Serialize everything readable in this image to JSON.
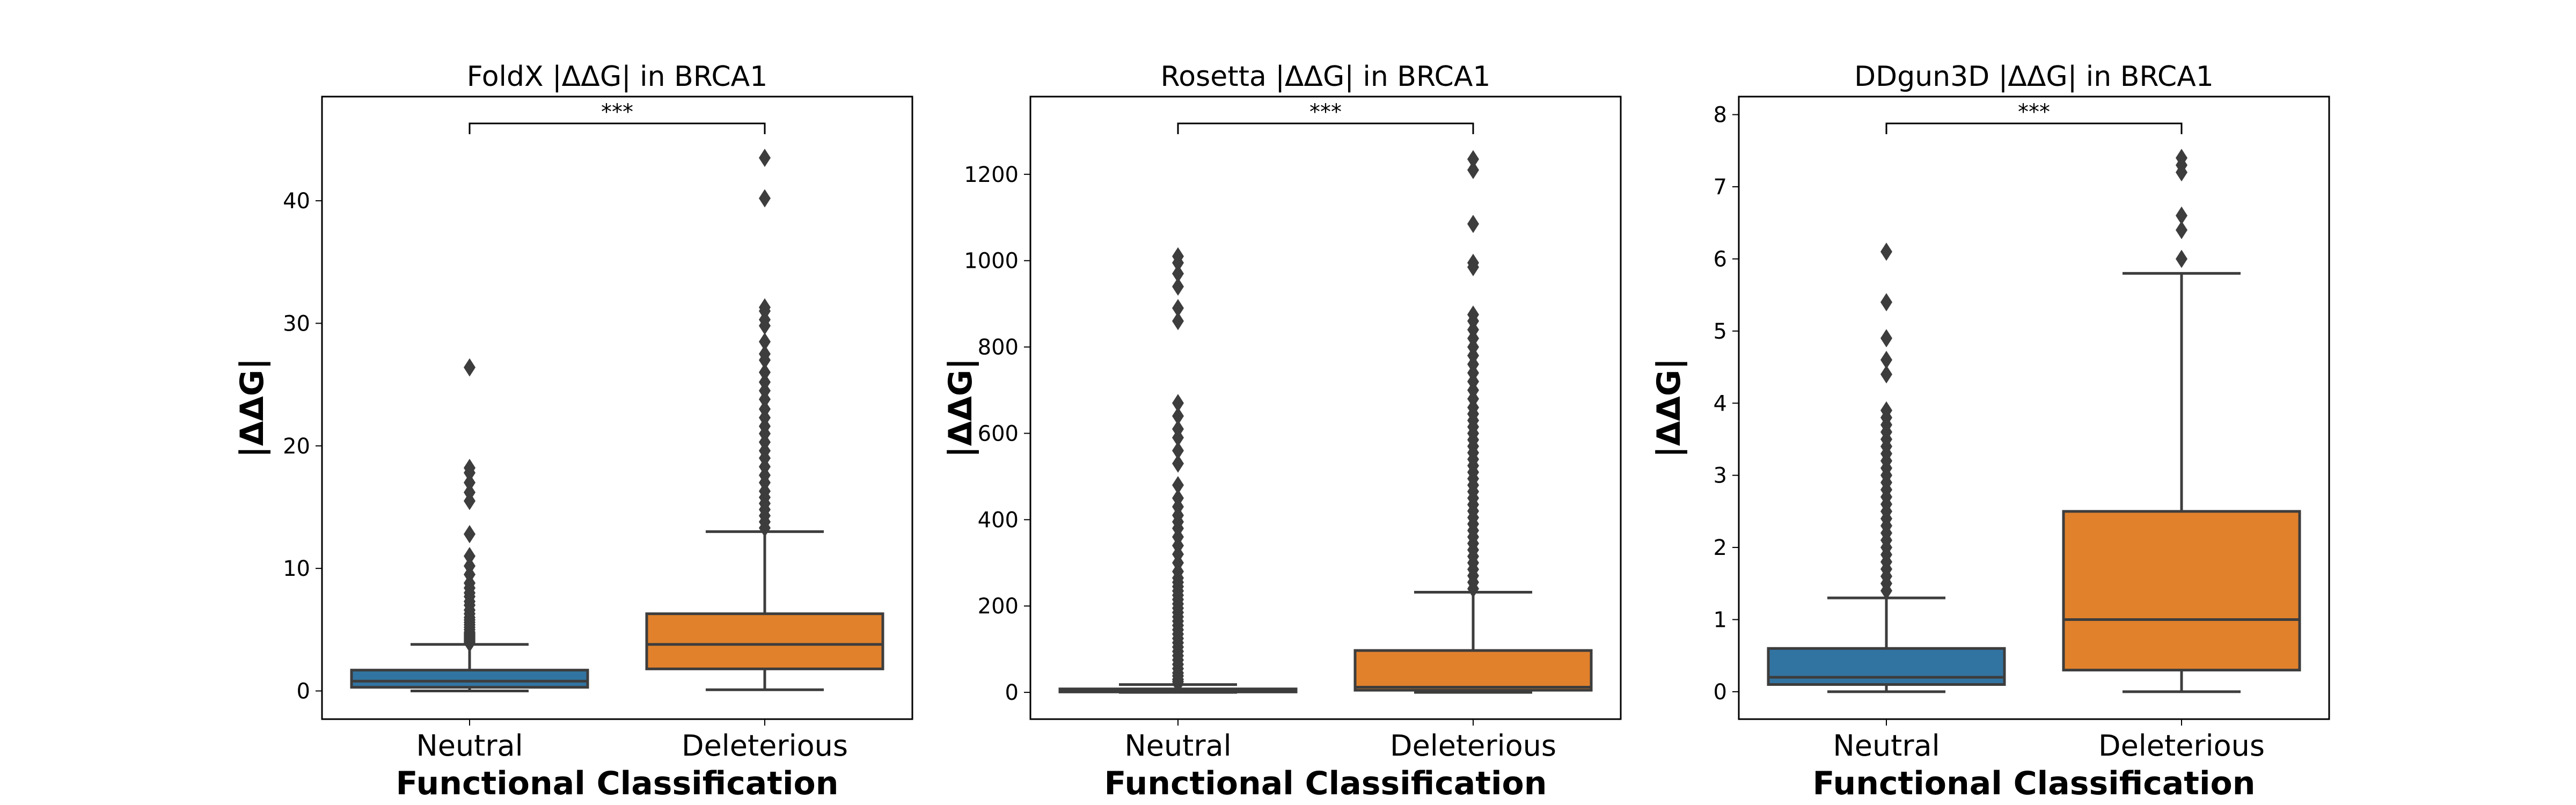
{
  "chart_data": [
    {
      "type": "box",
      "title": "FoldX |ΔΔG| in BRCA1",
      "xlabel": "Functional Classification",
      "ylabel": "|ΔΔG|",
      "categories": [
        "Neutral",
        "Deleterious"
      ],
      "ylim": [
        -2.3,
        48.5
      ],
      "yticks": [
        0,
        10,
        20,
        30,
        40
      ],
      "significance": "***",
      "boxes": [
        {
          "category": "Neutral",
          "color": "#3274a1",
          "whisker_low": 0.0,
          "q1": 0.3,
          "median": 0.8,
          "q3": 1.7,
          "whisker_high": 3.8,
          "outliers": [
            3.9,
            4.0,
            4.1,
            4.2,
            4.3,
            4.4,
            4.5,
            4.6,
            4.7,
            4.8,
            5.0,
            5.2,
            5.4,
            5.6,
            5.8,
            6.0,
            6.3,
            6.6,
            7.0,
            7.3,
            7.7,
            8.0,
            8.4,
            8.8,
            9.5,
            10.2,
            11.0,
            12.8,
            15.5,
            16.2,
            17.0,
            17.8,
            18.2,
            26.4
          ]
        },
        {
          "category": "Deleterious",
          "color": "#e1812c",
          "whisker_low": 0.1,
          "q1": 1.8,
          "median": 3.8,
          "q3": 6.3,
          "whisker_high": 13.0,
          "outliers": [
            13.3,
            13.8,
            14.3,
            14.8,
            15.3,
            15.8,
            16.3,
            17.0,
            17.6,
            18.3,
            19.0,
            19.6,
            20.3,
            21.0,
            21.6,
            22.3,
            23.0,
            23.8,
            24.5,
            25.2,
            26.0,
            27.0,
            27.5,
            28.5,
            29.8,
            30.3,
            31.0,
            31.3,
            40.2,
            43.5
          ]
        }
      ]
    },
    {
      "type": "box",
      "title": "Rosetta |ΔΔG| in BRCA1",
      "xlabel": "Functional Classification",
      "ylabel": "|ΔΔG|",
      "categories": [
        "Neutral",
        "Deleterious"
      ],
      "ylim": [
        -62,
        1380
      ],
      "yticks": [
        0,
        200,
        400,
        600,
        800,
        1000,
        1200
      ],
      "significance": "***",
      "boxes": [
        {
          "category": "Neutral",
          "color": "#3274a1",
          "whisker_low": 0,
          "q1": 1,
          "median": 4,
          "q3": 8,
          "whisker_high": 18,
          "outliers": [
            20,
            25,
            30,
            38,
            45,
            55,
            65,
            75,
            85,
            95,
            105,
            115,
            125,
            135,
            145,
            155,
            165,
            175,
            185,
            195,
            205,
            215,
            225,
            235,
            245,
            255,
            265,
            280,
            300,
            320,
            340,
            360,
            380,
            395,
            410,
            430,
            450,
            480,
            530,
            560,
            590,
            610,
            640,
            670,
            860,
            890,
            940,
            970,
            995,
            1010
          ]
        },
        {
          "category": "Deleterious",
          "color": "#e1812c",
          "whisker_low": 0,
          "q1": 5,
          "median": 12,
          "q3": 97,
          "whisker_high": 232,
          "outliers": [
            240,
            255,
            270,
            285,
            300,
            315,
            330,
            345,
            360,
            375,
            390,
            405,
            420,
            435,
            450,
            465,
            480,
            495,
            510,
            525,
            540,
            555,
            570,
            585,
            600,
            615,
            630,
            645,
            660,
            680,
            700,
            720,
            740,
            760,
            780,
            800,
            820,
            840,
            860,
            875,
            985,
            995,
            1085,
            1210,
            1235
          ]
        }
      ]
    },
    {
      "type": "box",
      "title": "DDgun3D |ΔΔG| in BRCA1",
      "xlabel": "Functional Classification",
      "ylabel": "|ΔΔG|",
      "categories": [
        "Neutral",
        "Deleterious"
      ],
      "ylim": [
        -0.38,
        8.25
      ],
      "yticks": [
        0,
        1,
        2,
        3,
        4,
        5,
        6,
        7,
        8
      ],
      "significance": "***",
      "boxes": [
        {
          "category": "Neutral",
          "color": "#3274a1",
          "whisker_low": 0.0,
          "q1": 0.1,
          "median": 0.2,
          "q3": 0.6,
          "whisker_high": 1.3,
          "outliers": [
            1.4,
            1.5,
            1.6,
            1.7,
            1.8,
            1.9,
            2.0,
            2.1,
            2.2,
            2.3,
            2.4,
            2.5,
            2.6,
            2.7,
            2.8,
            2.9,
            3.0,
            3.1,
            3.2,
            3.3,
            3.4,
            3.5,
            3.6,
            3.7,
            3.8,
            3.9,
            4.4,
            4.6,
            4.9,
            5.4,
            6.1
          ]
        },
        {
          "category": "Deleterious",
          "color": "#e1812c",
          "whisker_low": 0.0,
          "q1": 0.3,
          "median": 1.0,
          "q3": 2.5,
          "whisker_high": 5.8,
          "outliers": [
            6.0,
            6.4,
            6.6,
            7.2,
            7.3,
            7.4
          ]
        }
      ]
    }
  ]
}
